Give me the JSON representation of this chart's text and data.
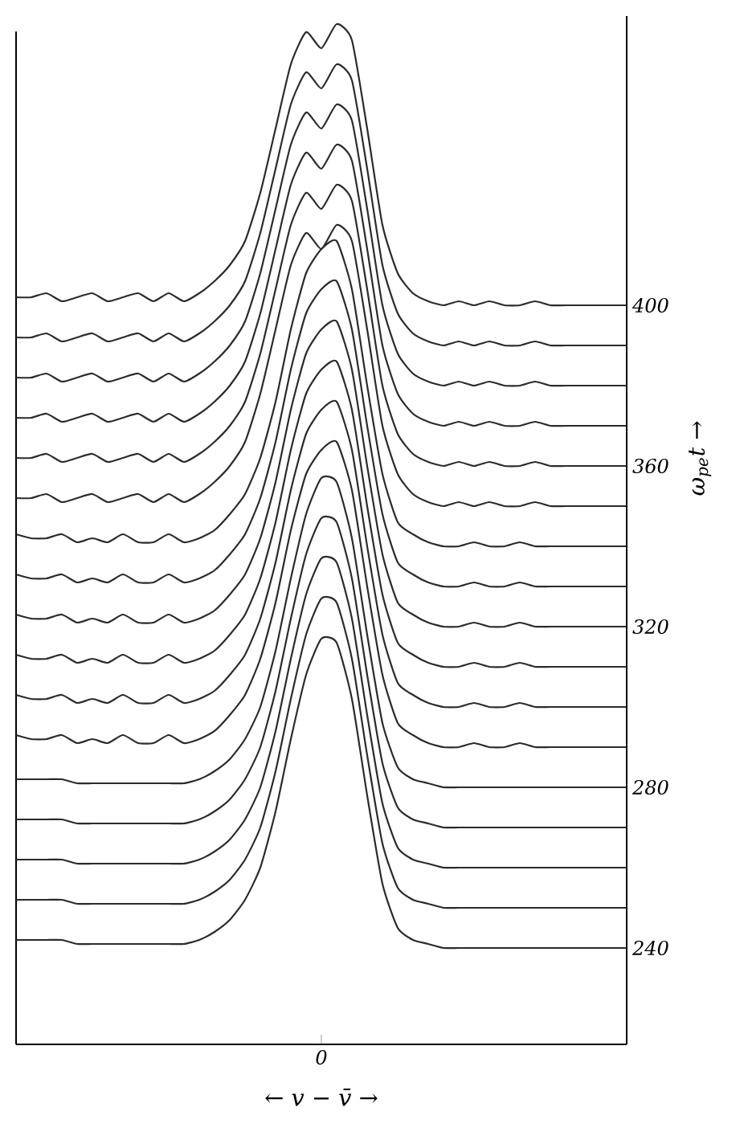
{
  "chart_data": {
    "type": "line",
    "xlabel": "← v − v̄ →",
    "ylabel": "ω$_{pe}$t →",
    "categories": [
      null,
      null,
      null,
      null,
      null,
      null,
      null,
      null,
      null,
      null,
      null,
      null,
      null,
      null,
      null,
      null,
      null,
      null,
      null,
      null,
      "0",
      null,
      null,
      null,
      null,
      null,
      null,
      null,
      null,
      null,
      null,
      null,
      null,
      null,
      null,
      null,
      null,
      null,
      null,
      null,
      null
    ],
    "ylim": [
      216,
      472
    ],
    "yticks": [
      240,
      280,
      320,
      360,
      400
    ],
    "series": [
      {
        "color": "#2b2b2b",
        "values": [
          242,
          242,
          242,
          242,
          241,
          241,
          241,
          241,
          241,
          241,
          241,
          241,
          242,
          244,
          247,
          252,
          260,
          274,
          292,
          308,
          317,
          316,
          302,
          278,
          256,
          245,
          242,
          241,
          240,
          240,
          240,
          240,
          240,
          240,
          240,
          240,
          240,
          240,
          240,
          240,
          240
        ]
      },
      {
        "color": "#2b2b2b",
        "values": [
          252,
          252,
          252,
          252,
          251,
          251,
          251,
          251,
          251,
          251,
          251,
          251,
          252,
          254,
          257,
          262,
          270,
          284,
          302,
          318,
          327,
          326,
          312,
          288,
          266,
          255,
          252,
          251,
          250,
          250,
          250,
          250,
          250,
          250,
          250,
          250,
          250,
          250,
          250,
          250,
          250
        ]
      },
      {
        "color": "#2b2b2b",
        "values": [
          262,
          262,
          262,
          262,
          261,
          261,
          261,
          261,
          261,
          261,
          261,
          261,
          262,
          264,
          267,
          272,
          280,
          294,
          312,
          328,
          337,
          336,
          322,
          298,
          276,
          265,
          262,
          261,
          260,
          260,
          260,
          260,
          260,
          260,
          260,
          260,
          260,
          260,
          260,
          260,
          260
        ]
      },
      {
        "color": "#2b2b2b",
        "values": [
          272,
          272,
          272,
          272,
          271,
          271,
          271,
          271,
          271,
          271,
          271,
          271,
          272,
          274,
          277,
          282,
          290,
          304,
          322,
          338,
          347,
          346,
          332,
          308,
          286,
          275,
          272,
          271,
          270,
          270,
          270,
          270,
          270,
          270,
          270,
          270,
          270,
          270,
          270,
          270,
          270
        ]
      },
      {
        "color": "#2b2b2b",
        "values": [
          282,
          282,
          282,
          282,
          281,
          281,
          281,
          281,
          281,
          281,
          281,
          281,
          282,
          284,
          287,
          292,
          300,
          314,
          332,
          348,
          357,
          356,
          342,
          318,
          296,
          285,
          282,
          281,
          280,
          280,
          280,
          280,
          280,
          280,
          280,
          280,
          280,
          280,
          280,
          280,
          280
        ]
      },
      {
        "color": "#2b2b2b",
        "values": [
          293,
          292,
          292,
          293,
          291,
          292,
          291,
          293,
          291,
          291,
          293,
          291,
          292,
          294,
          298,
          303,
          312,
          326,
          344,
          358,
          364,
          366,
          354,
          330,
          308,
          296,
          293,
          291,
          290,
          290,
          291,
          290,
          290,
          291,
          290,
          290,
          290,
          290,
          290,
          290,
          290
        ]
      },
      {
        "color": "#2b2b2b",
        "values": [
          303,
          302,
          302,
          303,
          301,
          302,
          301,
          303,
          301,
          301,
          303,
          301,
          302,
          304,
          308,
          313,
          322,
          336,
          354,
          368,
          374,
          376,
          364,
          340,
          318,
          306,
          303,
          301,
          300,
          300,
          301,
          300,
          300,
          301,
          300,
          300,
          300,
          300,
          300,
          300,
          300
        ]
      },
      {
        "color": "#2b2b2b",
        "values": [
          313,
          312,
          312,
          313,
          311,
          312,
          311,
          313,
          311,
          311,
          313,
          311,
          312,
          314,
          318,
          323,
          332,
          346,
          364,
          378,
          384,
          386,
          374,
          350,
          328,
          316,
          313,
          311,
          310,
          310,
          311,
          310,
          310,
          311,
          310,
          310,
          310,
          310,
          310,
          310,
          310
        ]
      },
      {
        "color": "#2b2b2b",
        "values": [
          323,
          322,
          322,
          323,
          321,
          322,
          321,
          323,
          321,
          321,
          323,
          321,
          322,
          324,
          328,
          333,
          342,
          356,
          374,
          388,
          394,
          396,
          384,
          360,
          338,
          326,
          323,
          321,
          320,
          320,
          321,
          320,
          320,
          321,
          320,
          320,
          320,
          320,
          320,
          320,
          320
        ]
      },
      {
        "color": "#2b2b2b",
        "values": [
          333,
          332,
          332,
          333,
          331,
          332,
          331,
          333,
          331,
          331,
          333,
          331,
          332,
          334,
          338,
          343,
          352,
          366,
          384,
          398,
          404,
          406,
          394,
          370,
          348,
          336,
          333,
          331,
          330,
          330,
          331,
          330,
          330,
          331,
          330,
          330,
          330,
          330,
          330,
          330,
          330
        ]
      },
      {
        "color": "#2b2b2b",
        "values": [
          343,
          342,
          342,
          343,
          341,
          342,
          341,
          343,
          341,
          341,
          343,
          341,
          342,
          344,
          348,
          353,
          362,
          376,
          394,
          408,
          414,
          416,
          404,
          380,
          358,
          346,
          343,
          341,
          340,
          340,
          341,
          340,
          340,
          341,
          340,
          340,
          340,
          340,
          340,
          340,
          340
        ]
      },
      {
        "color": "#2b2b2b",
        "values": [
          352,
          352,
          353,
          351,
          352,
          353,
          351,
          352,
          353,
          351,
          353,
          351,
          353,
          356,
          360,
          366,
          378,
          394,
          410,
          418,
          414,
          420,
          416,
          394,
          370,
          358,
          353,
          351,
          350,
          351,
          350,
          351,
          350,
          350,
          351,
          350,
          350,
          350,
          350,
          350,
          350
        ]
      },
      {
        "color": "#2b2b2b",
        "values": [
          362,
          362,
          363,
          361,
          362,
          363,
          361,
          362,
          363,
          361,
          363,
          361,
          363,
          366,
          370,
          376,
          388,
          404,
          420,
          428,
          424,
          430,
          426,
          404,
          380,
          368,
          363,
          361,
          360,
          361,
          360,
          361,
          360,
          360,
          361,
          360,
          360,
          360,
          360,
          360,
          360
        ]
      },
      {
        "color": "#2b2b2b",
        "values": [
          372,
          372,
          373,
          371,
          372,
          373,
          371,
          372,
          373,
          371,
          373,
          371,
          373,
          376,
          380,
          386,
          398,
          414,
          430,
          438,
          434,
          440,
          436,
          414,
          390,
          378,
          373,
          371,
          370,
          371,
          370,
          371,
          370,
          370,
          371,
          370,
          370,
          370,
          370,
          370,
          370
        ]
      },
      {
        "color": "#2b2b2b",
        "values": [
          382,
          382,
          383,
          381,
          382,
          383,
          381,
          382,
          383,
          381,
          383,
          381,
          383,
          386,
          390,
          396,
          408,
          424,
          440,
          448,
          444,
          450,
          446,
          424,
          400,
          388,
          383,
          381,
          380,
          381,
          380,
          381,
          380,
          380,
          381,
          380,
          380,
          380,
          380,
          380,
          380
        ]
      },
      {
        "color": "#2b2b2b",
        "values": [
          392,
          392,
          393,
          391,
          392,
          393,
          391,
          392,
          393,
          391,
          393,
          391,
          393,
          396,
          400,
          406,
          418,
          434,
          450,
          458,
          454,
          460,
          456,
          434,
          410,
          398,
          393,
          391,
          390,
          391,
          390,
          391,
          390,
          390,
          391,
          390,
          390,
          390,
          390,
          390,
          390
        ]
      },
      {
        "color": "#2b2b2b",
        "values": [
          402,
          402,
          403,
          401,
          402,
          403,
          401,
          402,
          403,
          401,
          403,
          401,
          403,
          406,
          410,
          416,
          428,
          444,
          460,
          468,
          464,
          470,
          466,
          444,
          420,
          408,
          403,
          401,
          400,
          401,
          400,
          401,
          400,
          400,
          401,
          400,
          400,
          400,
          400,
          400,
          400
        ]
      }
    ]
  }
}
